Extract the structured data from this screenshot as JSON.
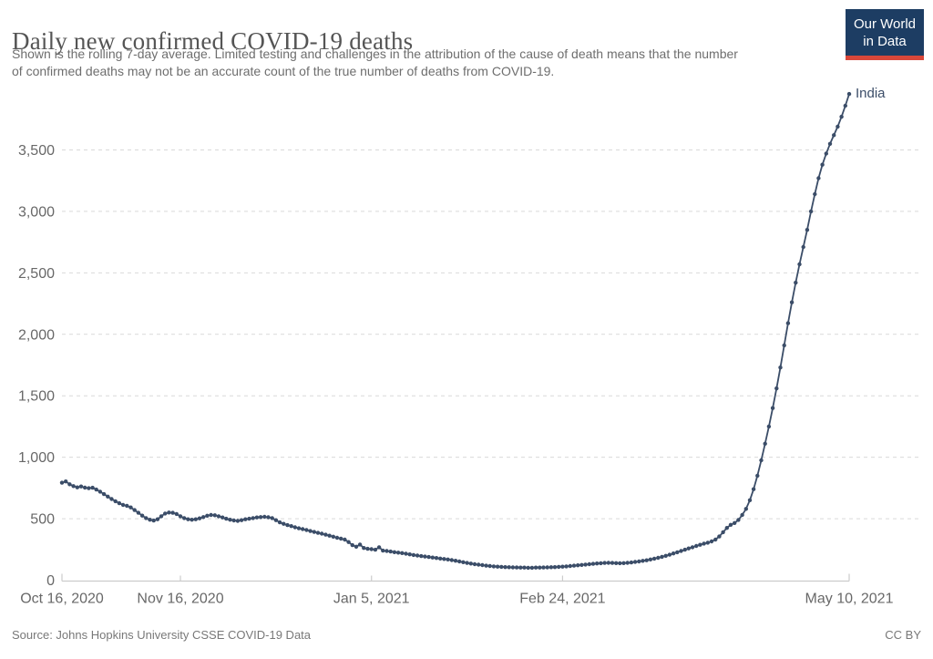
{
  "header": {
    "title": "Daily new confirmed COVID-19 deaths",
    "subtitle_lines": [
      "Shown is the rolling 7-day average. Limited testing and challenges in the attribution of the cause of death means that the number",
      "of confirmed deaths may not be an accurate count of the true number of deaths from COVID-19."
    ]
  },
  "logo": {
    "line1": "Our World",
    "line2": "in Data",
    "bg_color": "#1d3d63",
    "accent_color": "#d9473a"
  },
  "chart_data": {
    "type": "line",
    "title": "Daily new confirmed COVID-19 deaths",
    "cadence": "daily",
    "grid": "horizontal-dashed",
    "legend_position": "end-of-line-label",
    "ylim": [
      0,
      3980
    ],
    "y_ticks": [
      {
        "value": 0,
        "label": "0"
      },
      {
        "value": 500,
        "label": "500"
      },
      {
        "value": 1000,
        "label": "1,000"
      },
      {
        "value": 1500,
        "label": "1,500"
      },
      {
        "value": 2000,
        "label": "2,000"
      },
      {
        "value": 2500,
        "label": "2,500"
      },
      {
        "value": 3000,
        "label": "3,000"
      },
      {
        "value": 3500,
        "label": "3,500"
      }
    ],
    "x_ticks": [
      {
        "day": 0,
        "label": "Oct 16, 2020"
      },
      {
        "day": 31,
        "label": "Nov 16, 2020"
      },
      {
        "day": 81,
        "label": "Jan 5, 2021"
      },
      {
        "day": 131,
        "label": "Feb 24, 2021"
      },
      {
        "day": 206,
        "label": "May 10, 2021"
      }
    ],
    "end_label": "India",
    "series": [
      {
        "name": "India",
        "color": "#3b4d68",
        "start": "2020-10-16",
        "end": "2021-05-10",
        "values": [
          793,
          803,
          780,
          765,
          755,
          762,
          753,
          748,
          752,
          737,
          720,
          700,
          680,
          660,
          642,
          626,
          612,
          605,
          592,
          570,
          548,
          525,
          505,
          492,
          485,
          495,
          520,
          542,
          550,
          548,
          538,
          520,
          505,
          495,
          492,
          495,
          503,
          513,
          524,
          530,
          528,
          520,
          510,
          500,
          492,
          486,
          482,
          488,
          495,
          500,
          505,
          510,
          513,
          515,
          512,
          505,
          488,
          470,
          458,
          448,
          440,
          430,
          422,
          415,
          408,
          400,
          392,
          385,
          378,
          370,
          362,
          354,
          345,
          338,
          330,
          310,
          285,
          272,
          290,
          262,
          255,
          252,
          248,
          268,
          240,
          237,
          233,
          228,
          224,
          220,
          215,
          210,
          205,
          200,
          196,
          192,
          188,
          184,
          180,
          176,
          172,
          168,
          163,
          158,
          152,
          146,
          140,
          135,
          130,
          126,
          122,
          118,
          115,
          112,
          110,
          108,
          106,
          105,
          104,
          103,
          102,
          102,
          101,
          101,
          102,
          102,
          103,
          104,
          105,
          106,
          108,
          110,
          112,
          115,
          118,
          121,
          124,
          127,
          130,
          133,
          136,
          138,
          140,
          141,
          140,
          139,
          138,
          139,
          141,
          144,
          148,
          152,
          157,
          162,
          168,
          175,
          182,
          190,
          198,
          207,
          217,
          227,
          237,
          248,
          258,
          268,
          278,
          288,
          297,
          305,
          315,
          330,
          355,
          390,
          425,
          450,
          465,
          490,
          530,
          580,
          650,
          740,
          850,
          975,
          1110,
          1250,
          1400,
          1560,
          1730,
          1910,
          2090,
          2260,
          2420,
          2570,
          2710,
          2850,
          3000,
          3140,
          3270,
          3380,
          3470,
          3550,
          3620,
          3690,
          3770,
          3860,
          3955
        ]
      }
    ]
  },
  "footer": {
    "source": "Source: Johns Hopkins University CSSE COVID-19 Data",
    "license": "CC BY"
  }
}
